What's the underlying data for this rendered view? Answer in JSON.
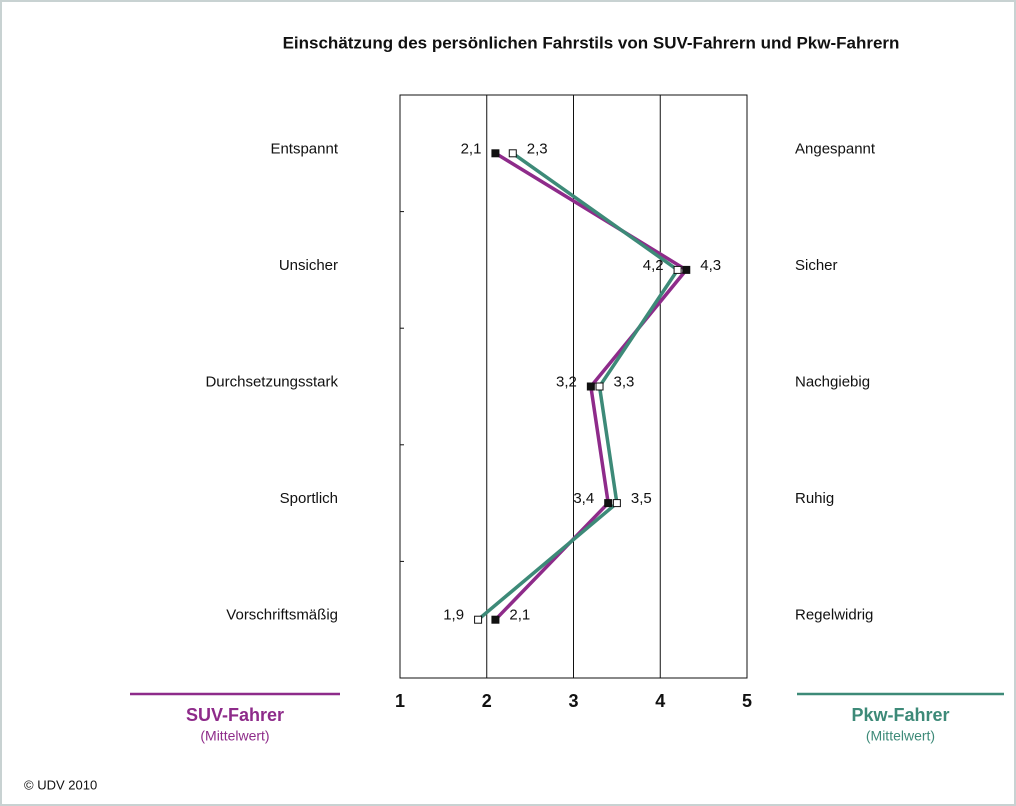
{
  "chart_data": {
    "type": "line",
    "title": "Einschätzung des persönlichen Fahrstils von SUV-Fahrern und Pkw-Fahrern",
    "categories": [
      "Entspannt",
      "Unsicher",
      "Durchsetzungsstark",
      "Sportlich",
      "Vorschriftsmäßig"
    ],
    "right_labels": [
      "Angespannt",
      "Sicher",
      "Nachgiebig",
      "Ruhig",
      "Regelwidrig"
    ],
    "series": [
      {
        "name": "SUV-Fahrer",
        "color": "#8e2b8a",
        "values": [
          2.1,
          4.3,
          3.2,
          3.4,
          2.1
        ],
        "value_labels": [
          "2,1",
          "4,3",
          "3,2",
          "3,4",
          "2,1"
        ]
      },
      {
        "name": "Pkw-Fahrer",
        "color": "#3d8a78",
        "values": [
          2.3,
          4.2,
          3.3,
          3.5,
          1.9
        ],
        "value_labels": [
          "2,3",
          "4,2",
          "3,3",
          "3,5",
          "1,9"
        ]
      }
    ],
    "legend_note": "(Mittelwert)",
    "xlim": [
      1,
      5
    ],
    "xticks": [
      1,
      2,
      3,
      4,
      5
    ],
    "grid": true,
    "source": "© UDV 2010"
  }
}
